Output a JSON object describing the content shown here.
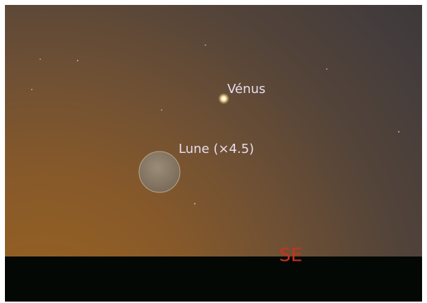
{
  "labels": {
    "venus": "Vénus",
    "moon": "Lune (×4.5)",
    "direction": "SE"
  }
}
